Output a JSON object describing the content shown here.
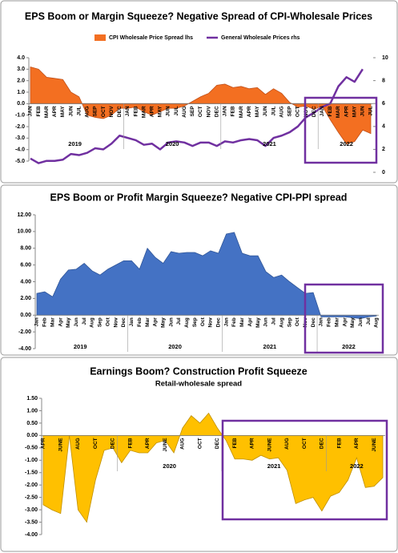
{
  "chart_data": [
    {
      "type": "area",
      "title": "EPS Boom or Margin Squeeze? Negative Spread of CPI-Wholesale Prices",
      "categories": [
        "JAN",
        "FEB",
        "MAR",
        "APR",
        "MAY",
        "JUN",
        "JUL",
        "AUG",
        "SEP",
        "OCT",
        "NOV",
        "DEC",
        "JAN",
        "FEB",
        "MAR",
        "APR",
        "MAY",
        "JUN",
        "JUL",
        "AUG",
        "SEP",
        "OCT",
        "NOV",
        "DEC",
        "JAN",
        "FEB",
        "MAR",
        "APR",
        "MAY",
        "JUN",
        "JUL",
        "AUG",
        "SEP",
        "OCT",
        "NOV",
        "DEC",
        "JAN",
        "FEB",
        "MAR",
        "APR",
        "MAY",
        "JUN",
        "JUL"
      ],
      "groups": [
        "2019",
        "2019",
        "2019",
        "2019",
        "2019",
        "2019",
        "2019",
        "2019",
        "2019",
        "2019",
        "2019",
        "2019",
        "2020",
        "2020",
        "2020",
        "2020",
        "2020",
        "2020",
        "2020",
        "2020",
        "2020",
        "2020",
        "2020",
        "2020",
        "2021",
        "2021",
        "2021",
        "2021",
        "2021",
        "2021",
        "2021",
        "2021",
        "2021",
        "2021",
        "2021",
        "2021",
        "2022",
        "2022",
        "2022",
        "2022",
        "2022",
        "2022",
        "2022"
      ],
      "series": [
        {
          "name": "CPI Wholesale Price Spread lhs",
          "type": "area",
          "color": "#f36f21",
          "values": [
            3.2,
            3.0,
            2.3,
            2.2,
            2.1,
            1.0,
            0.6,
            -1.0,
            -1.2,
            -1.3,
            -1.0,
            -0.4,
            -0.4,
            -0.3,
            -0.7,
            -1.0,
            -0.7,
            -0.4,
            -0.4,
            -0.2,
            0.2,
            0.6,
            0.9,
            1.6,
            1.7,
            1.4,
            1.5,
            1.3,
            1.4,
            0.8,
            1.3,
            0.9,
            0.1,
            -0.3,
            -0.2,
            -0.5,
            -0.2,
            -1.4,
            -2.5,
            -3.5,
            -3.3,
            -2.3,
            -2.6
          ]
        },
        {
          "name": "General Wholesale Prices rhs",
          "type": "line",
          "axis": "y2",
          "color": "#7030a0",
          "values": [
            1.2,
            0.8,
            1.0,
            1.0,
            1.1,
            1.6,
            1.5,
            1.7,
            2.1,
            2.0,
            2.5,
            3.2,
            3.0,
            2.8,
            2.4,
            2.5,
            2.0,
            2.6,
            2.7,
            2.6,
            2.3,
            2.6,
            2.6,
            2.3,
            2.7,
            2.6,
            2.8,
            2.9,
            2.8,
            2.3,
            3.0,
            3.2,
            3.5,
            4.0,
            4.8,
            5.2,
            5.7,
            6.0,
            7.5,
            8.3,
            7.9,
            9.0,
            null
          ]
        }
      ],
      "ylim": [
        -5,
        4
      ],
      "yticks": [
        {
          "value": 4,
          "label": "4.0"
        },
        {
          "value": 3,
          "label": "3.0"
        },
        {
          "value": 2,
          "label": "2.0"
        },
        {
          "value": 1,
          "label": "1.0"
        },
        {
          "value": 0,
          "label": "0.0"
        },
        {
          "value": -1,
          "label": "-1.0"
        },
        {
          "value": -2,
          "label": "-2.0"
        },
        {
          "value": -3,
          "label": "-3.0"
        },
        {
          "value": -4,
          "label": "-4.0"
        },
        {
          "value": -5,
          "label": "-5.0"
        }
      ],
      "y2lim": [
        0,
        10
      ],
      "y2ticks": [
        0,
        2,
        4,
        6,
        8,
        10
      ],
      "legend": "top"
    },
    {
      "type": "area",
      "title": "EPS Boom or Profit Margin Squeeze? Negative CPI-PPI spread",
      "categories": [
        "Jan",
        "Feb",
        "Mar",
        "Apr",
        "May",
        "Jun",
        "Jul",
        "Aug",
        "Sep",
        "Oct",
        "Nov",
        "Dec",
        "Jan",
        "Feb",
        "Mar",
        "Apr",
        "May",
        "Jun",
        "Jul",
        "Aug",
        "Sep",
        "Oct",
        "Nov",
        "Dec",
        "Jan",
        "Feb",
        "Mar",
        "Apr",
        "May",
        "Jun",
        "Jul",
        "Aug",
        "Sep",
        "Oct",
        "Nov",
        "Dec",
        "Jan",
        "Feb",
        "Mar",
        "Apr",
        "May",
        "Jun",
        "Jul",
        "Aug"
      ],
      "groups": [
        "2019",
        "2019",
        "2019",
        "2019",
        "2019",
        "2019",
        "2019",
        "2019",
        "2019",
        "2019",
        "2019",
        "2019",
        "2020",
        "2020",
        "2020",
        "2020",
        "2020",
        "2020",
        "2020",
        "2020",
        "2020",
        "2020",
        "2020",
        "2020",
        "2021",
        "2021",
        "2021",
        "2021",
        "2021",
        "2021",
        "2021",
        "2021",
        "2021",
        "2021",
        "2021",
        "2021",
        "2022",
        "2022",
        "2022",
        "2022",
        "2022",
        "2022",
        "2022",
        "2022"
      ],
      "color": "#4472c4",
      "values": [
        2.6,
        2.8,
        2.2,
        4.3,
        5.4,
        5.5,
        6.2,
        5.3,
        4.8,
        5.5,
        6.0,
        6.5,
        6.5,
        5.5,
        8.0,
        6.9,
        6.2,
        7.6,
        7.4,
        7.5,
        7.5,
        7.1,
        7.7,
        7.4,
        9.7,
        9.9,
        7.4,
        7.1,
        7.1,
        5.2,
        4.5,
        4.8,
        4.0,
        3.3,
        2.6,
        2.7,
        -0.2,
        -0.2,
        -0.2,
        -0.2,
        -0.3,
        -0.4,
        -0.2,
        -0.1
      ],
      "ylim": [
        -4,
        12
      ],
      "yticks": [
        {
          "value": 12,
          "label": "12.00"
        },
        {
          "value": 10,
          "label": "10.00"
        },
        {
          "value": 8,
          "label": "8.00"
        },
        {
          "value": 6,
          "label": "6.00"
        },
        {
          "value": 4,
          "label": "4.00"
        },
        {
          "value": 2,
          "label": "2.00"
        },
        {
          "value": 0,
          "label": "0.00"
        },
        {
          "value": -2,
          "label": "-2.00"
        },
        {
          "value": -4,
          "label": "-4.00"
        }
      ]
    },
    {
      "type": "area",
      "title": "Earnings Boom? Construction Profit Squeeze",
      "subtitle": "Retail-wholesale spread",
      "categories": [
        "APR",
        null,
        "JUNE",
        null,
        "AUG",
        null,
        "OCT",
        null,
        "DEC",
        null,
        "FEB",
        null,
        "APR",
        null,
        "JUNE",
        null,
        "AUG",
        null,
        "OCT",
        null,
        "DEC",
        null,
        "FEB",
        null,
        "APR",
        null,
        "JUNE",
        null,
        "AUG",
        null,
        "OCT",
        null,
        "DEC",
        null,
        "FEB",
        null,
        "APR",
        null,
        "JUNE",
        null
      ],
      "groups": [
        null,
        null,
        null,
        null,
        null,
        null,
        null,
        null,
        null,
        "2020",
        "2020",
        "2020",
        "2020",
        "2020",
        "2020",
        "2020",
        "2020",
        "2020",
        "2020",
        "2020",
        "2020",
        "2021",
        "2021",
        "2021",
        "2021",
        "2021",
        "2021",
        "2021",
        "2021",
        "2021",
        "2021",
        "2021",
        "2021",
        "2022",
        "2022",
        "2022",
        "2022",
        "2022",
        "2022",
        "2022"
      ],
      "color": "#ffc000",
      "values": [
        -2.8,
        -3.0,
        -3.15,
        0.0,
        -3.0,
        -3.5,
        -1.8,
        -0.6,
        -0.5,
        -1.1,
        -0.6,
        -0.7,
        -0.7,
        -0.3,
        -0.2,
        -0.7,
        0.3,
        0.8,
        0.5,
        0.9,
        0.3,
        -0.2,
        -0.95,
        -0.95,
        -1.0,
        -0.8,
        -0.95,
        -0.9,
        -1.4,
        -2.75,
        -2.6,
        -2.5,
        -3.05,
        -2.45,
        -2.3,
        -1.8,
        -0.9,
        -2.1,
        -2.05,
        -1.7
      ],
      "ylim": [
        -4,
        1.5
      ],
      "yticks": [
        {
          "value": 1.5,
          "label": "1.50"
        },
        {
          "value": 1,
          "label": "1.00"
        },
        {
          "value": 0.5,
          "label": "0.50"
        },
        {
          "value": 0,
          "label": "0.00"
        },
        {
          "value": -0.5,
          "label": "-0.50"
        },
        {
          "value": -1,
          "label": "-1.00"
        },
        {
          "value": -1.5,
          "label": "-1.50"
        },
        {
          "value": -2,
          "label": "-2.00"
        },
        {
          "value": -2.5,
          "label": "-2.50"
        },
        {
          "value": -3,
          "label": "-3.00"
        },
        {
          "value": -3.5,
          "label": "-3.50"
        },
        {
          "value": -4,
          "label": "-4.00"
        }
      ]
    }
  ]
}
